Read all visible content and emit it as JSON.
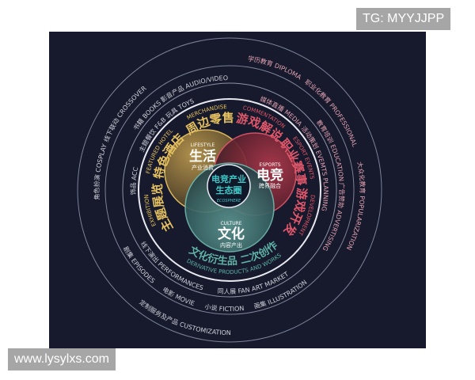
{
  "watermarks": {
    "top_right": "TG: MYYJJPP",
    "bottom_left": "www.lysylxs.com"
  },
  "center": {
    "zh_line1": "电竞产业",
    "zh_line2": "生态圈",
    "en": "ECOSPHERE"
  },
  "circles": {
    "lifestyle": {
      "en": "LIFESTYLE",
      "zh": "生活",
      "sub": "产业消费"
    },
    "esports": {
      "en": "ESPORTS",
      "zh": "电竞",
      "sub": "跨界融合"
    },
    "culture": {
      "en": "CULTURE",
      "zh": "文化",
      "sub": "内容产出"
    }
  },
  "inner": {
    "merchandise": {
      "en": "MERCHANDISE",
      "zh": "周边零售"
    },
    "featured_hotel": {
      "en": "FEATURED HOTEL",
      "zh": "特色酒店"
    },
    "exhibition": {
      "en": "EXHIBITION",
      "zh": "主题展览"
    },
    "commentation": {
      "en": "COMMENTATION",
      "zh": "游戏解说"
    },
    "esport_events": {
      "en": "ESPORT EVENTS",
      "zh": "职业赛事"
    },
    "development": {
      "en": "DEVELOPMENT",
      "zh": "游戏开发"
    },
    "derivative": {
      "en": "DERIVATIVE PRODUCTS AND WORKS",
      "zh": "文化衍生品  二次创作"
    }
  },
  "ring_a": {
    "acc": "饰品 ACC",
    "fnb": "主题餐饮 F&B",
    "toys": "玩具 TOYS",
    "media": "媒体直播 MEDIA",
    "events_planning": "活动策划 EVEMTS PLANNING",
    "performances": "线下演出 PERFORMANCES",
    "fan_art_market": "同人展 FAN ART MARKET"
  },
  "ring_b": {
    "books": "书籍 BOOKS",
    "audio_video": "影音产品 AUDIO/VIDEO",
    "education": "教育培训 EDUCATION",
    "advertising": "广告赞助 ADVERTISING",
    "episodes": "剧集 EPISODES",
    "movie": "电影 MOVIE",
    "fiction": "小说 FICTION",
    "illustration": "画集 ILLUSTRATION"
  },
  "ring_c": {
    "cosplay": "角色扮演 COSPLAY",
    "crossover": "线下联动 CROSSOVER",
    "diploma": "学历教育 DIPLOMA",
    "professional": "职业化教育 PROFESSIONAL",
    "popularization": "大众化教育 POPULARIZATION",
    "customization": "定制服务及产品 CUSTOMIZATION"
  },
  "colors": {
    "background": "#161a2c",
    "lifestyle": "#e6c160",
    "esports": "#e0566a",
    "culture": "#5fb3a8",
    "ecosphere": "#3fc6c6",
    "ring_line": "#7d8299",
    "white_ring": "#e8e8f0",
    "band_text_left": "#cfd0da",
    "band_text_right": "#e3a2b2"
  }
}
